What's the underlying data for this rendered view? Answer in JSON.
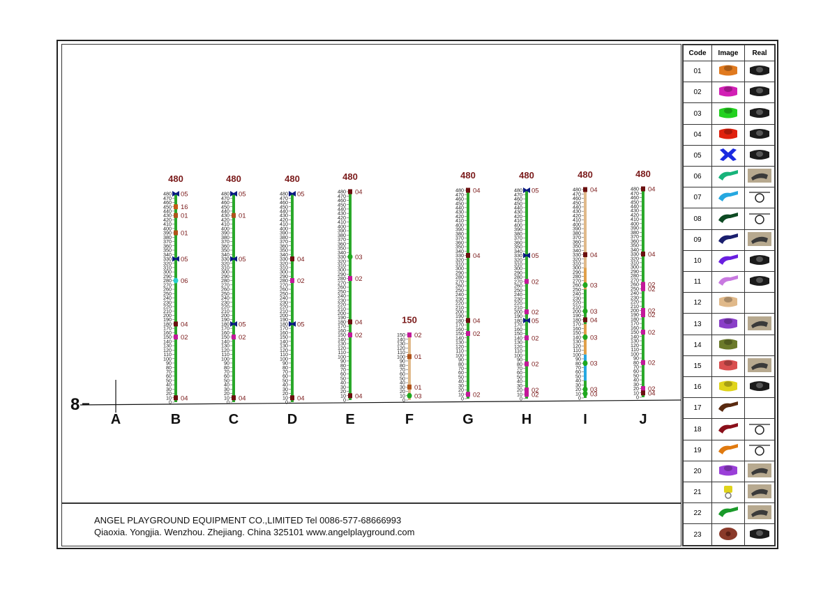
{
  "legend": {
    "headers": {
      "code": "Code",
      "image": "Image",
      "real": "Real"
    },
    "rows": [
      {
        "code": "01",
        "color": "#e07a1f",
        "shape": "tee",
        "real": "dark"
      },
      {
        "code": "02",
        "color": "#d21fb5",
        "shape": "tee",
        "real": "dark"
      },
      {
        "code": "03",
        "color": "#22d11f",
        "shape": "tee",
        "real": "dark"
      },
      {
        "code": "04",
        "color": "#e0210e",
        "shape": "tee",
        "real": "dark"
      },
      {
        "code": "05",
        "color": "#1a2ae0",
        "shape": "cross",
        "real": "dark"
      },
      {
        "code": "06",
        "color": "#17b37a",
        "shape": "clamp",
        "real": "photo"
      },
      {
        "code": "07",
        "color": "#26a8e0",
        "shape": "clamp",
        "real": "ring"
      },
      {
        "code": "08",
        "color": "#0d4a23",
        "shape": "clamp",
        "real": "ring"
      },
      {
        "code": "09",
        "color": "#1a1f6e",
        "shape": "clamp",
        "real": "photo"
      },
      {
        "code": "10",
        "color": "#6a1fe0",
        "shape": "clamp",
        "real": "dark"
      },
      {
        "code": "11",
        "color": "#c879e0",
        "shape": "clamp",
        "real": "dark"
      },
      {
        "code": "12",
        "color": "#e0b98a",
        "shape": "tee",
        "real": "none"
      },
      {
        "code": "13",
        "color": "#8a3fc8",
        "shape": "tee",
        "real": "photo"
      },
      {
        "code": "14",
        "color": "#6b7a2a",
        "shape": "tee",
        "real": "none"
      },
      {
        "code": "15",
        "color": "#d94f4f",
        "shape": "tee",
        "real": "photo"
      },
      {
        "code": "16",
        "color": "#e0d41a",
        "shape": "tee",
        "real": "dark"
      },
      {
        "code": "17",
        "color": "#5a2a10",
        "shape": "clamp",
        "real": "none"
      },
      {
        "code": "18",
        "color": "#8a0f1a",
        "shape": "clamp",
        "real": "ring"
      },
      {
        "code": "19",
        "color": "#e07a10",
        "shape": "clamp",
        "real": "ring"
      },
      {
        "code": "20",
        "color": "#9a3fd8",
        "shape": "tee",
        "real": "photo"
      },
      {
        "code": "21",
        "color": "#e0d41a",
        "shape": "ring",
        "real": "photo"
      },
      {
        "code": "22",
        "color": "#1a9a2a",
        "shape": "clamp",
        "real": "photo"
      },
      {
        "code": "23",
        "color": "#8a3a2a",
        "shape": "flange",
        "real": "dark"
      }
    ]
  },
  "footer": {
    "line1": "ANGEL PLAYGROUND EQUIPMENT CO.,LIMITED  Tel 0086-577-68666993",
    "line2": "Qiaoxia. Yongjia. Wenzhou. Zhejiang. China  325101  www.angelplayground.com"
  },
  "baseline_label": "8",
  "posts": [
    {
      "letter": "A",
      "height": null,
      "fittings": []
    },
    {
      "letter": "B",
      "height": "480",
      "max": 480,
      "color": "#2aa82a",
      "fittings": [
        {
          "at": 480,
          "code": "05"
        },
        {
          "at": 450,
          "code": "16"
        },
        {
          "at": 430,
          "code": "01"
        },
        {
          "at": 390,
          "code": "01"
        },
        {
          "at": 330,
          "code": "05"
        },
        {
          "at": 280,
          "code": "06"
        },
        {
          "at": 180,
          "code": "04"
        },
        {
          "at": 150,
          "code": "02"
        },
        {
          "at": 10,
          "code": "04"
        }
      ]
    },
    {
      "letter": "C",
      "height": "480",
      "max": 480,
      "color": "#2aa82a",
      "fittings": [
        {
          "at": 480,
          "code": "05"
        },
        {
          "at": 430,
          "code": "01"
        },
        {
          "at": 330,
          "code": "05"
        },
        {
          "at": 180,
          "code": "05"
        },
        {
          "at": 150,
          "code": "02"
        },
        {
          "at": 10,
          "code": "04"
        }
      ]
    },
    {
      "letter": "D",
      "height": "480",
      "max": 480,
      "color": "#2aa82a",
      "fittings": [
        {
          "at": 480,
          "code": "05"
        },
        {
          "at": 330,
          "code": "04"
        },
        {
          "at": 280,
          "code": "02"
        },
        {
          "at": 180,
          "code": "05"
        },
        {
          "at": 10,
          "code": "04"
        }
      ]
    },
    {
      "letter": "E",
      "height": "480",
      "max": 480,
      "color": "#2aa82a",
      "fittings": [
        {
          "at": 480,
          "code": "04"
        },
        {
          "at": 330,
          "code": "03"
        },
        {
          "at": 280,
          "code": "02"
        },
        {
          "at": 180,
          "code": "04"
        },
        {
          "at": 150,
          "code": "02"
        },
        {
          "at": 10,
          "code": "04"
        }
      ]
    },
    {
      "letter": "F",
      "height": "150",
      "max": 150,
      "color": "#e0b98a",
      "fittings": [
        {
          "at": 150,
          "code": "02"
        },
        {
          "at": 100,
          "code": "01"
        },
        {
          "at": 30,
          "code": "01"
        },
        {
          "at": 10,
          "code": "03"
        }
      ]
    },
    {
      "letter": "G",
      "height": "480",
      "max": 480,
      "color": "#2aa82a",
      "fittings": [
        {
          "at": 480,
          "code": "04"
        },
        {
          "at": 330,
          "code": "04"
        },
        {
          "at": 180,
          "code": "04"
        },
        {
          "at": 150,
          "code": "02"
        },
        {
          "at": 10,
          "code": "02"
        }
      ]
    },
    {
      "letter": "H",
      "height": "480",
      "max": 480,
      "color": "#2aa82a",
      "fittings": [
        {
          "at": 480,
          "code": "05"
        },
        {
          "at": 330,
          "code": "05"
        },
        {
          "at": 270,
          "code": "02"
        },
        {
          "at": 200,
          "code": "02"
        },
        {
          "at": 180,
          "code": "05"
        },
        {
          "at": 140,
          "code": "02"
        },
        {
          "at": 80,
          "code": "02"
        },
        {
          "at": 20,
          "code": "02"
        },
        {
          "at": 10,
          "code": "02"
        }
      ]
    },
    {
      "letter": "I",
      "height": "480",
      "max": 480,
      "color": "#e0a04a",
      "fittings": [
        {
          "at": 480,
          "code": "04"
        },
        {
          "at": 330,
          "code": "04"
        },
        {
          "at": 260,
          "code": "03"
        },
        {
          "at": 200,
          "code": "03"
        },
        {
          "at": 180,
          "code": "04"
        },
        {
          "at": 140,
          "code": "03"
        },
        {
          "at": 80,
          "code": "03"
        },
        {
          "at": 20,
          "code": "03"
        },
        {
          "at": 10,
          "code": "03"
        }
      ]
    },
    {
      "letter": "J",
      "height": "480",
      "max": 480,
      "color": "#2aa82a",
      "fittings": [
        {
          "at": 480,
          "code": "04"
        },
        {
          "at": 330,
          "code": "04"
        },
        {
          "at": 260,
          "code": "02"
        },
        {
          "at": 250,
          "code": "02"
        },
        {
          "at": 200,
          "code": "02"
        },
        {
          "at": 190,
          "code": "02"
        },
        {
          "at": 150,
          "code": "02"
        },
        {
          "at": 80,
          "code": "02"
        },
        {
          "at": 20,
          "code": "02"
        },
        {
          "at": 10,
          "code": "04"
        }
      ]
    }
  ]
}
